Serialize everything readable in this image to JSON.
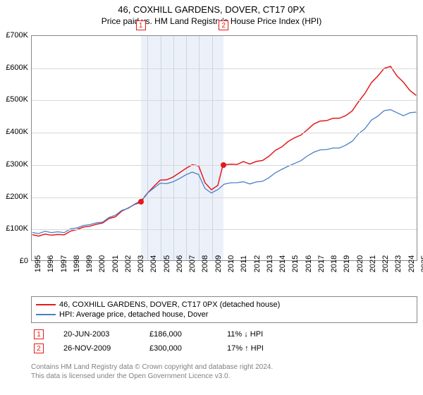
{
  "title": {
    "line1": "46, COXHILL GARDENS, DOVER, CT17 0PX",
    "line2": "Price paid vs. HM Land Registry's House Price Index (HPI)",
    "fontsize_line1": 13,
    "fontsize_line2": 12
  },
  "chart": {
    "type": "line",
    "background_color": "#ffffff",
    "border_color": "#888888",
    "grid_color": "#d8d8d8",
    "shade_color": "rgba(180,200,230,0.25)",
    "ylim": [
      0,
      700000
    ],
    "ytick_step": 100000,
    "ytick_labels": [
      "£0",
      "£100K",
      "£200K",
      "£300K",
      "£400K",
      "£500K",
      "£600K",
      "£700K"
    ],
    "xlim": [
      1995,
      2025
    ],
    "xtick_step": 1,
    "xtick_labels": [
      "1995",
      "1996",
      "1997",
      "1998",
      "1999",
      "2000",
      "2001",
      "2002",
      "2003",
      "2004",
      "2005",
      "2006",
      "2007",
      "2008",
      "2009",
      "2010",
      "2011",
      "2012",
      "2013",
      "2014",
      "2015",
      "2016",
      "2017",
      "2018",
      "2019",
      "2020",
      "2021",
      "2022",
      "2023",
      "2024",
      "2025"
    ],
    "label_fontsize": 11,
    "series": [
      {
        "name": "46, COXHILL GARDENS, DOVER, CT17 0PX (detached house)",
        "color": "#e31a1c",
        "line_width": 1.5,
        "data": [
          [
            1995,
            78000
          ],
          [
            1995.5,
            74000
          ],
          [
            1996,
            76000
          ],
          [
            1996.5,
            80000
          ],
          [
            1997,
            82000
          ],
          [
            1997.5,
            85000
          ],
          [
            1998,
            90000
          ],
          [
            1998.5,
            95000
          ],
          [
            1999,
            98000
          ],
          [
            1999.5,
            107000
          ],
          [
            2000,
            113000
          ],
          [
            2000.5,
            122000
          ],
          [
            2001,
            130000
          ],
          [
            2001.5,
            135000
          ],
          [
            2002,
            148000
          ],
          [
            2002.5,
            163000
          ],
          [
            2003,
            175000
          ],
          [
            2003.47,
            186000
          ],
          [
            2004,
            210000
          ],
          [
            2004.5,
            230000
          ],
          [
            2005,
            245000
          ],
          [
            2005.5,
            250000
          ],
          [
            2006,
            260000
          ],
          [
            2006.5,
            278000
          ],
          [
            2007,
            288000
          ],
          [
            2007.5,
            298000
          ],
          [
            2008,
            290000
          ],
          [
            2008.5,
            240000
          ],
          [
            2009,
            220000
          ],
          [
            2009.5,
            238000
          ],
          [
            2009.9,
            300000
          ],
          [
            2010.5,
            300000
          ],
          [
            2011,
            295000
          ],
          [
            2011.5,
            305000
          ],
          [
            2012,
            300000
          ],
          [
            2012.5,
            312000
          ],
          [
            2013,
            315000
          ],
          [
            2013.5,
            325000
          ],
          [
            2014,
            340000
          ],
          [
            2014.5,
            350000
          ],
          [
            2015,
            370000
          ],
          [
            2015.5,
            385000
          ],
          [
            2016,
            395000
          ],
          [
            2016.5,
            408000
          ],
          [
            2017,
            423000
          ],
          [
            2017.5,
            430000
          ],
          [
            2018,
            435000
          ],
          [
            2018.5,
            445000
          ],
          [
            2019,
            448000
          ],
          [
            2019.5,
            452000
          ],
          [
            2020,
            465000
          ],
          [
            2020.5,
            490000
          ],
          [
            2021,
            520000
          ],
          [
            2021.5,
            555000
          ],
          [
            2022,
            580000
          ],
          [
            2022.5,
            600000
          ],
          [
            2023,
            605000
          ],
          [
            2023.5,
            570000
          ],
          [
            2024,
            555000
          ],
          [
            2024.5,
            530000
          ],
          [
            2025,
            520000
          ]
        ]
      },
      {
        "name": "HPI: Average price, detached house, Dover",
        "color": "#4a7fc4",
        "line_width": 1.3,
        "data": [
          [
            1995,
            85000
          ],
          [
            1995.5,
            82000
          ],
          [
            1996,
            85000
          ],
          [
            1996.5,
            88000
          ],
          [
            1997,
            90000
          ],
          [
            1997.5,
            92000
          ],
          [
            1998,
            97000
          ],
          [
            1998.5,
            100000
          ],
          [
            1999,
            103000
          ],
          [
            1999.5,
            112000
          ],
          [
            2000,
            118000
          ],
          [
            2000.5,
            125000
          ],
          [
            2001,
            133000
          ],
          [
            2001.5,
            140000
          ],
          [
            2002,
            150000
          ],
          [
            2002.5,
            162000
          ],
          [
            2003,
            176000
          ],
          [
            2003.5,
            192000
          ],
          [
            2004,
            210000
          ],
          [
            2004.5,
            225000
          ],
          [
            2005,
            235000
          ],
          [
            2005.5,
            238000
          ],
          [
            2006,
            245000
          ],
          [
            2006.5,
            260000
          ],
          [
            2007,
            268000
          ],
          [
            2007.5,
            275000
          ],
          [
            2008,
            263000
          ],
          [
            2008.5,
            222000
          ],
          [
            2009,
            210000
          ],
          [
            2009.5,
            225000
          ],
          [
            2010,
            240000
          ],
          [
            2010.5,
            242000
          ],
          [
            2011,
            238000
          ],
          [
            2011.5,
            242000
          ],
          [
            2012,
            238000
          ],
          [
            2012.5,
            248000
          ],
          [
            2013,
            250000
          ],
          [
            2013.5,
            258000
          ],
          [
            2014,
            270000
          ],
          [
            2014.5,
            280000
          ],
          [
            2015,
            293000
          ],
          [
            2015.5,
            305000
          ],
          [
            2016,
            315000
          ],
          [
            2016.5,
            326000
          ],
          [
            2017,
            335000
          ],
          [
            2017.5,
            340000
          ],
          [
            2018,
            345000
          ],
          [
            2018.5,
            352000
          ],
          [
            2019,
            355000
          ],
          [
            2019.5,
            360000
          ],
          [
            2020,
            370000
          ],
          [
            2020.5,
            390000
          ],
          [
            2021,
            410000
          ],
          [
            2021.5,
            438000
          ],
          [
            2022,
            455000
          ],
          [
            2022.5,
            468000
          ],
          [
            2023,
            470000
          ],
          [
            2023.5,
            455000
          ],
          [
            2024,
            450000
          ],
          [
            2024.5,
            460000
          ],
          [
            2025,
            468000
          ]
        ]
      }
    ],
    "markers": [
      {
        "num": "1",
        "x": 2003.47,
        "y": 186000,
        "color": "#e31a1c"
      },
      {
        "num": "2",
        "x": 2009.9,
        "y": 300000,
        "color": "#e31a1c"
      }
    ],
    "shaded_x_from": 2003.47,
    "shaded_x_to": 2009.9
  },
  "legend": {
    "items": [
      {
        "color": "#e31a1c",
        "label": "46, COXHILL GARDENS, DOVER, CT17 0PX (detached house)"
      },
      {
        "color": "#4a7fc4",
        "label": "HPI: Average price, detached house, Dover"
      }
    ],
    "fontsize": 11,
    "border_color": "#888888"
  },
  "marker_rows": [
    {
      "num": "1",
      "date": "20-JUN-2003",
      "price": "£186,000",
      "pct": "11% ↓ HPI",
      "color": "#e31a1c"
    },
    {
      "num": "2",
      "date": "26-NOV-2009",
      "price": "£300,000",
      "pct": "17% ↑ HPI",
      "color": "#e31a1c"
    }
  ],
  "footer": {
    "line1": "Contains HM Land Registry data © Crown copyright and database right 2024.",
    "line2": "This data is licensed under the Open Government Licence v3.0.",
    "color": "#808080",
    "fontsize": 10
  }
}
